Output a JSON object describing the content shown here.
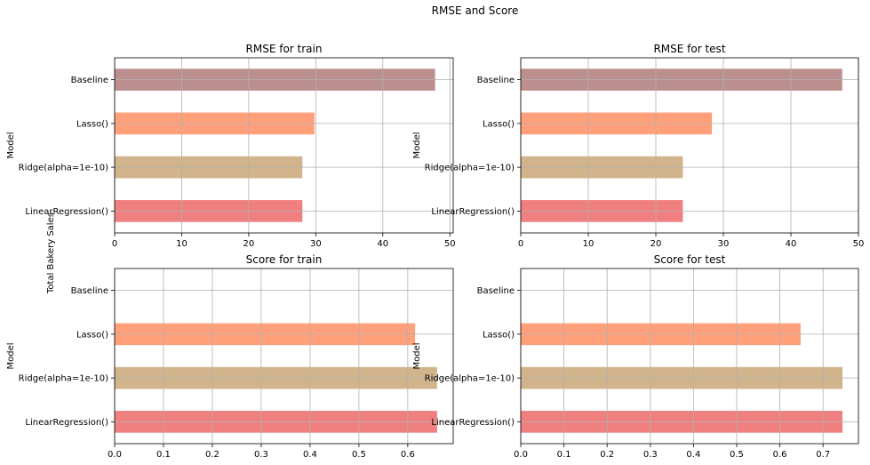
{
  "figure": {
    "suptitle": "RMSE and Score",
    "side_label": "Total Bakery Sales"
  },
  "colors": {
    "Baseline": "#bc8f8f",
    "Lasso()": "#ffa07a",
    "Ridge(alpha=1e-10)": "#d2b48c",
    "LinearRegression()": "#f08080",
    "grid": "#b0b0b0"
  },
  "chart_data": [
    {
      "type": "bar",
      "orientation": "horizontal",
      "title": "RMSE for train",
      "ylabel": "Model",
      "xlabel": "",
      "categories": [
        "LinearRegression()",
        "Ridge(alpha=1e-10)",
        "Lasso()",
        "Baseline"
      ],
      "values": [
        28.0,
        28.0,
        29.8,
        47.8
      ],
      "xlim": [
        0,
        50.5
      ],
      "xticks": [
        0,
        10,
        20,
        30,
        40,
        50
      ],
      "xtick_labels": [
        "0",
        "10",
        "20",
        "30",
        "40",
        "50"
      ],
      "grid": true
    },
    {
      "type": "bar",
      "orientation": "horizontal",
      "title": "RMSE for test",
      "ylabel": "Model",
      "xlabel": "",
      "categories": [
        "LinearRegression()",
        "Ridge(alpha=1e-10)",
        "Lasso()",
        "Baseline"
      ],
      "values": [
        24.0,
        24.0,
        28.3,
        47.6
      ],
      "xlim": [
        0,
        50
      ],
      "xticks": [
        0,
        10,
        20,
        30,
        40,
        50
      ],
      "xtick_labels": [
        "0",
        "10",
        "20",
        "30",
        "40",
        "50"
      ],
      "grid": true
    },
    {
      "type": "bar",
      "orientation": "horizontal",
      "title": "Score for train",
      "ylabel": "Model",
      "xlabel": "",
      "categories": [
        "LinearRegression()",
        "Ridge(alpha=1e-10)",
        "Lasso()",
        "Baseline"
      ],
      "values": [
        0.66,
        0.66,
        0.615,
        0.0
      ],
      "xlim": [
        0,
        0.693
      ],
      "xticks": [
        0.0,
        0.1,
        0.2,
        0.3,
        0.4,
        0.5,
        0.6
      ],
      "xtick_labels": [
        "0.0",
        "0.1",
        "0.2",
        "0.3",
        "0.4",
        "0.5",
        "0.6"
      ],
      "grid": true
    },
    {
      "type": "bar",
      "orientation": "horizontal",
      "title": "Score for test",
      "ylabel": "Model",
      "xlabel": "",
      "categories": [
        "LinearRegression()",
        "Ridge(alpha=1e-10)",
        "Lasso()",
        "Baseline"
      ],
      "values": [
        0.745,
        0.745,
        0.648,
        0.0
      ],
      "xlim": [
        0,
        0.782
      ],
      "xticks": [
        0.0,
        0.1,
        0.2,
        0.3,
        0.4,
        0.5,
        0.6,
        0.7
      ],
      "xtick_labels": [
        "0.0",
        "0.1",
        "0.2",
        "0.3",
        "0.4",
        "0.5",
        "0.6",
        "0.7"
      ],
      "grid": true
    }
  ]
}
